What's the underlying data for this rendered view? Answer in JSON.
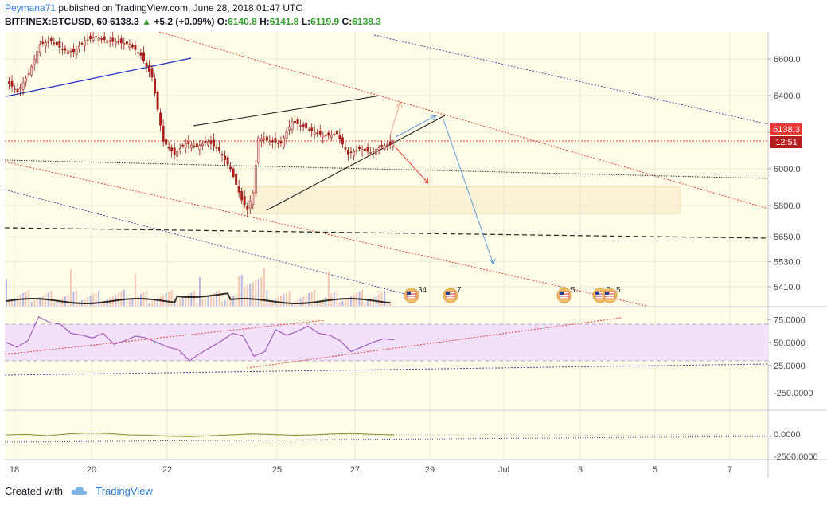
{
  "header": {
    "author": "Peymana71",
    "published_text": "published on TradingView.com, June 28, 2018 01:47 UTC"
  },
  "symbol": {
    "name": "BITFINEX:BTCUSD, 60",
    "last": "6138.3",
    "change_arrow": "▲",
    "change": "+5.2 (+0.09%)",
    "o_label": "O:",
    "o": "6140.8",
    "h_label": "H:",
    "h": "6141.8",
    "l_label": "L:",
    "l": "6119.9",
    "c_label": "C:",
    "c": "6138.3"
  },
  "footer": {
    "created_with": "Created with",
    "brand": "TradingView",
    "logo_icon": "tradingview-cloud-icon"
  },
  "colors": {
    "chart_bg": "#fffde8",
    "up_candle": "#f5c9c4",
    "down_candle": "#b71c1c",
    "red_dotted": "#e53935",
    "blue_dotted": "#3949ab",
    "blue_line": "#1e2bd1",
    "rsi_band": "#f3e0fb",
    "rsi_line": "#8e44ad",
    "price_tag": "#e53935",
    "time_tag": "#b71c1c"
  },
  "chart_data": [
    {
      "type": "candlestick",
      "series_label": "BITFINEX:BTCUSD, 60",
      "x_tick_labels": [
        "18",
        "20",
        "22",
        "25",
        "27",
        "29",
        "Jul",
        "3",
        "5",
        "7"
      ],
      "y_tick_labels": [
        "6600.0",
        "6400.0",
        "6200.0",
        "6000.0",
        "5800.0",
        "5650.0",
        "5530.0",
        "5410.0"
      ],
      "y_tick_values": [
        6600,
        6400,
        6200,
        6000,
        5800,
        5650,
        5530,
        5410
      ],
      "last_price_label": "6138.3",
      "countdown_label": "12:51",
      "price_path": [
        [
          0,
          6480
        ],
        [
          4,
          6420
        ],
        [
          8,
          6520
        ],
        [
          12,
          6680
        ],
        [
          16,
          6700
        ],
        [
          20,
          6650
        ],
        [
          24,
          6640
        ],
        [
          28,
          6700
        ],
        [
          32,
          6720
        ],
        [
          36,
          6700
        ],
        [
          40,
          6690
        ],
        [
          44,
          6680
        ],
        [
          48,
          6620
        ],
        [
          52,
          6500
        ],
        [
          56,
          6150
        ],
        [
          60,
          6080
        ],
        [
          64,
          6140
        ],
        [
          68,
          6120
        ],
        [
          72,
          6150
        ],
        [
          76,
          6100
        ],
        [
          80,
          6000
        ],
        [
          84,
          5830
        ],
        [
          86,
          5780
        ],
        [
          88,
          5870
        ],
        [
          90,
          6170
        ],
        [
          94,
          6150
        ],
        [
          98,
          6140
        ],
        [
          102,
          6260
        ],
        [
          106,
          6230
        ],
        [
          110,
          6200
        ],
        [
          114,
          6180
        ],
        [
          118,
          6190
        ],
        [
          122,
          6080
        ],
        [
          126,
          6110
        ],
        [
          130,
          6090
        ],
        [
          134,
          6125
        ],
        [
          138,
          6138.3
        ]
      ],
      "annotations": [
        "ascending-wedge",
        "upper-channel-trendline",
        "support-zone",
        "projection-arrows"
      ],
      "economic_events": [
        "34",
        "7",
        "5",
        "2",
        "5"
      ]
    },
    {
      "type": "area",
      "series_label": "volume",
      "note": "volume histogram with moving average at bottom of price pane"
    },
    {
      "type": "line",
      "series_label": "RSI",
      "y_tick_labels": [
        "75.0000",
        "50.0000",
        "25.0000"
      ],
      "y_tick_values": [
        75,
        50,
        25
      ],
      "band": [
        30,
        70
      ],
      "values": [
        50,
        45,
        52,
        78,
        72,
        70,
        60,
        58,
        55,
        60,
        48,
        52,
        57,
        55,
        50,
        45,
        42,
        30,
        38,
        45,
        52,
        60,
        57,
        35,
        40,
        64,
        58,
        62,
        68,
        60,
        58,
        52,
        40,
        45,
        50,
        54,
        53
      ]
    },
    {
      "type": "line",
      "series_label": "oscillator",
      "y_tick_labels": [
        "-250.0000",
        "0.0000",
        "-2500.0000"
      ],
      "y_tick_values": [
        -250,
        0,
        -2500
      ],
      "values": [
        0,
        5,
        -10,
        10,
        20,
        15,
        0,
        -5,
        -15,
        -20,
        -10,
        0,
        10,
        5,
        -5,
        0,
        10,
        15,
        5,
        0
      ]
    }
  ]
}
